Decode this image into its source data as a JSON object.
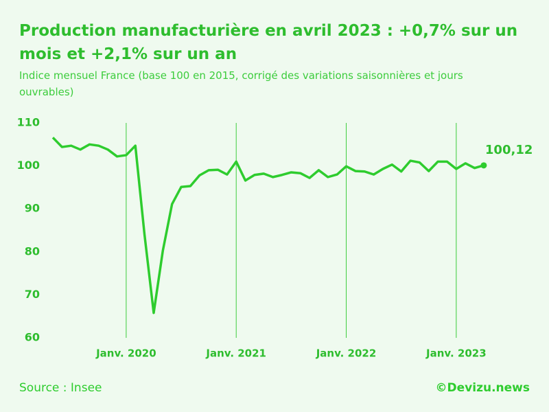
{
  "chart_data": {
    "type": "line",
    "title": "Production manufacturière en avril 2023 : +0,7% sur un mois et +2,1% sur un an",
    "subtitle": "Indice mensuel France (base 100 en 2015, corrigé des variations saisonnières et jours ouvrables)",
    "source": "Source : Insee",
    "credit": "©Devizu.news",
    "categories": [
      null,
      null,
      null,
      null,
      null,
      null,
      null,
      null,
      "Janv. 2020",
      null,
      null,
      null,
      null,
      null,
      null,
      null,
      null,
      null,
      null,
      null,
      "Janv. 2021",
      null,
      null,
      null,
      null,
      null,
      null,
      null,
      null,
      null,
      null,
      null,
      "Janv. 2022",
      null,
      null,
      null,
      null,
      null,
      null,
      null,
      null,
      null,
      null,
      null,
      "Janv. 2023",
      null,
      null,
      null
    ],
    "series": [
      {
        "name": "Production manufacturière",
        "color": "#2ecc2e",
        "values": [
          106.6,
          104.4,
          104.7,
          103.8,
          105.0,
          104.7,
          103.8,
          102.2,
          102.5,
          104.7,
          84,
          65.8,
          80.3,
          91.1,
          95.1,
          95.3,
          97.8,
          99.0,
          99.1,
          98.0,
          101.0,
          96.6,
          97.9,
          98.2,
          97.4,
          97.9,
          98.5,
          98.3,
          97.2,
          99.0,
          97.4,
          98.0,
          99.9,
          98.8,
          98.7,
          98.0,
          99.3,
          100.3,
          98.7,
          101.2,
          100.8,
          98.8,
          101.0,
          101.0,
          99.3,
          100.6,
          99.5,
          100.12
        ],
        "value_labels": [
          null,
          null,
          null,
          null,
          null,
          null,
          null,
          null,
          null,
          null,
          null,
          null,
          null,
          null,
          null,
          null,
          null,
          null,
          null,
          null,
          null,
          null,
          null,
          null,
          null,
          null,
          null,
          null,
          null,
          null,
          null,
          null,
          null,
          null,
          null,
          null,
          null,
          null,
          null,
          null,
          null,
          null,
          null,
          null,
          null,
          null,
          null,
          "100,12"
        ]
      }
    ],
    "ylim": [
      60,
      110
    ],
    "yticks": [
      60,
      70,
      80,
      90,
      100,
      110
    ]
  }
}
